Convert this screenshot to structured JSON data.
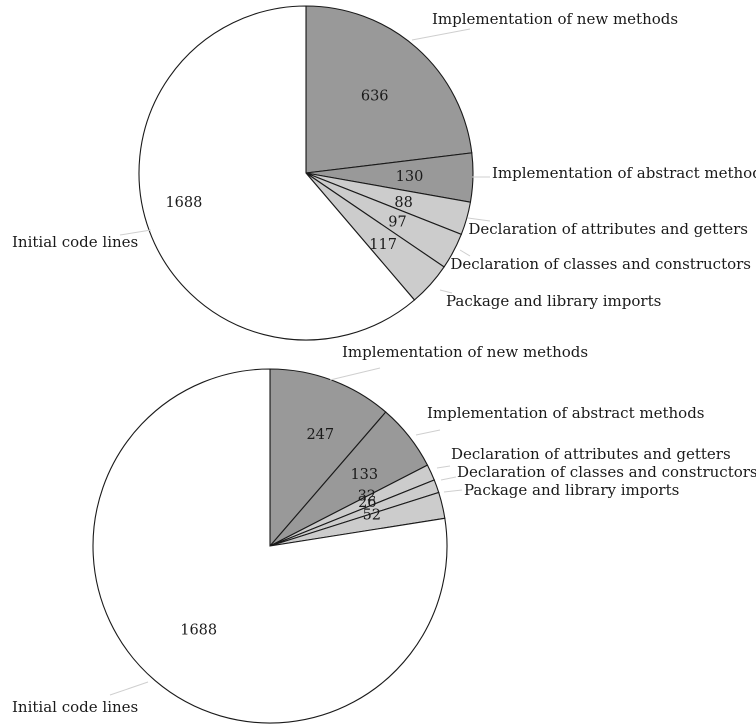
{
  "chart_data": [
    {
      "type": "pie",
      "title": "",
      "slices": [
        {
          "label": "Implementation of new methods",
          "value": 636,
          "color": "#999999"
        },
        {
          "label": "Implementation of abstract methods",
          "value": 130,
          "color": "#999999"
        },
        {
          "label": "Declaration of attributes and getters",
          "value": 88,
          "color": "#cccccc"
        },
        {
          "label": "Declaration of classes and constructors",
          "value": 97,
          "color": "#cccccc"
        },
        {
          "label": "Package and library imports",
          "value": 117,
          "color": "#cccccc"
        },
        {
          "label": "Initial code lines",
          "value": 1688,
          "color": "#ffffff"
        }
      ]
    },
    {
      "type": "pie",
      "title": "",
      "slices": [
        {
          "label": "Implementation of new methods",
          "value": 247,
          "color": "#999999"
        },
        {
          "label": "Implementation of abstract methods",
          "value": 133,
          "color": "#999999"
        },
        {
          "label": "Declaration of attributes and getters",
          "value": 32,
          "color": "#cccccc"
        },
        {
          "label": "Declaration of classes and constructors",
          "value": 26,
          "color": "#cccccc"
        },
        {
          "label": "Package and library imports",
          "value": 52,
          "color": "#cccccc"
        },
        {
          "label": "Initial code lines",
          "value": 1688,
          "color": "#ffffff"
        }
      ]
    }
  ]
}
